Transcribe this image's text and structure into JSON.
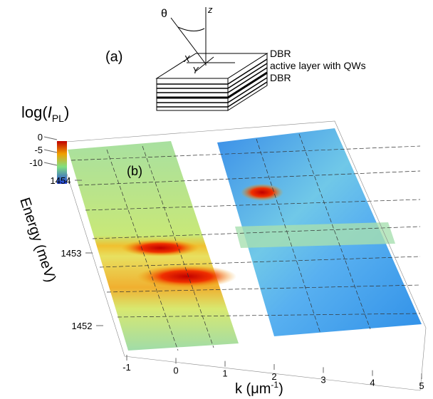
{
  "panel_a": {
    "label": "(a)",
    "theta": "θ",
    "z": "z",
    "x": "X",
    "y": "Y",
    "layers": [
      "DBR",
      "active layer with QWs",
      "DBR"
    ]
  },
  "panel_b": {
    "label": "(b)",
    "z_label": {
      "prefix": "log(",
      "symbol": "I",
      "subscript": "PL",
      "suffix": ")"
    },
    "y_label": "Energy (meV)",
    "x_label": {
      "prefix": "k (",
      "unit": "μm",
      "superscript": "-1",
      "suffix": ")"
    },
    "zticks": [
      0,
      -5,
      -10
    ],
    "yticks": [
      1454,
      1453,
      1452
    ],
    "xticks": [
      -1,
      0,
      1,
      2,
      3,
      4,
      5
    ]
  }
}
